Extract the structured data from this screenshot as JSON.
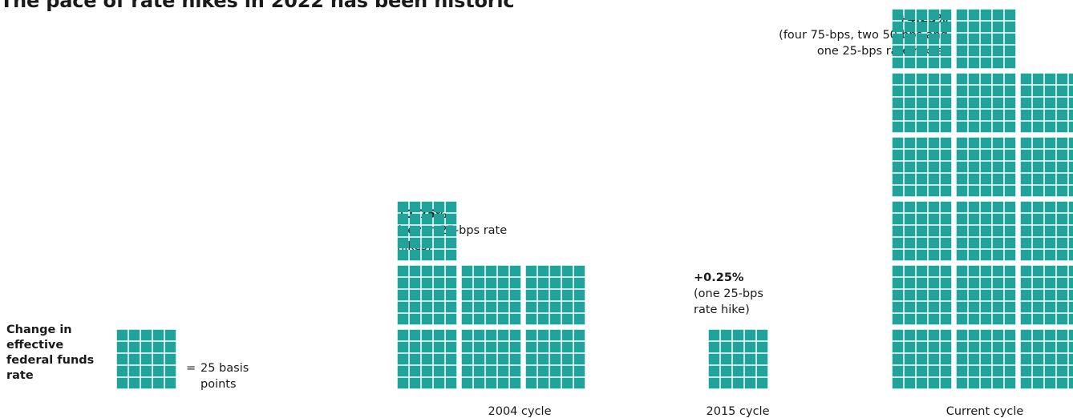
{
  "title": "The pace of rate hikes in 2022 has been historic",
  "legend": {
    "label": "Change in effective federal funds rate",
    "equals": "=",
    "unit_text": "25 basis points"
  },
  "colors": {
    "block": "#1fa39a",
    "gap": "#ffffff"
  },
  "chart_data": {
    "type": "waffle",
    "title": "The pace of rate hikes in 2022 has been historic",
    "unit": "25 basis points",
    "cycles": [
      {
        "label": "2004 cycle",
        "value_text": "+1.75%",
        "description": "(seven 25-bps rate hikes)",
        "total_bps": 175,
        "hikes_bps": [
          25,
          25,
          25,
          25,
          25,
          25,
          25
        ]
      },
      {
        "label": "2015 cycle",
        "value_text": "+0.25%",
        "description": "(one 25-bps rate hike)",
        "total_bps": 25,
        "hikes_bps": [
          25
        ]
      },
      {
        "label": "Current cycle",
        "value_text": "+4.25%",
        "description": "(four 75-bps, two 50-bps and one 25-bps rate hikes)",
        "total_bps": 425,
        "hikes_bps": [
          75,
          75,
          75,
          75,
          50,
          50,
          25
        ]
      }
    ]
  }
}
